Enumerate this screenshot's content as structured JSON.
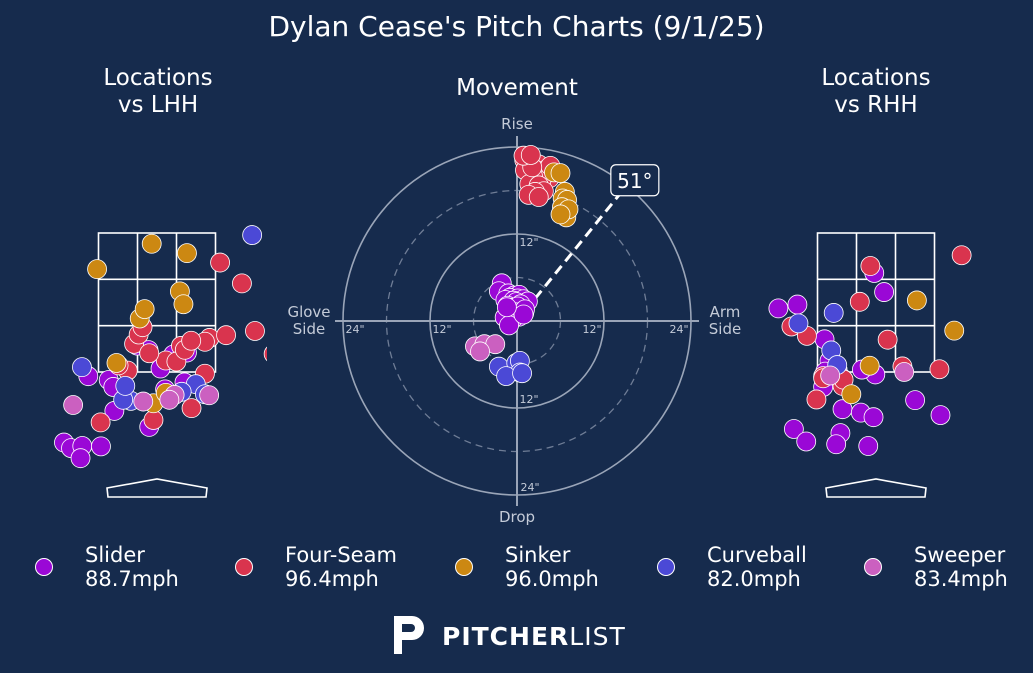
{
  "title": "Dylan Cease's Pitch Charts (9/1/25)",
  "panels": {
    "lhh_title": "Locations\nvs LHH",
    "movement_title": "Movement",
    "rhh_title": "Locations\nvs RHH"
  },
  "colors": {
    "background": "#162b4d",
    "Slider": "#9a08d6",
    "Four-Seam": "#d9344e",
    "Sinker": "#cc8812",
    "Curveball": "#4b49d6",
    "Sweeper": "#cb60c0"
  },
  "chart_data": [
    {
      "type": "scatter",
      "title": "Locations\nvs LHH",
      "series": [
        {
          "name": "Slider",
          "points": [
            [
              -0.56,
              2.26
            ],
            [
              -0.24,
              2.13
            ],
            [
              0.46,
              2.0
            ],
            [
              0.85,
              2.06
            ],
            [
              0.1,
              1.6
            ],
            [
              0.78,
              1.2
            ],
            [
              0.23,
              1.0
            ],
            [
              -1.95,
              1.38
            ],
            [
              -1.37,
              1.27
            ],
            [
              -1.24,
              1.07
            ],
            [
              -2.64,
              -0.53
            ],
            [
              -2.44,
              -0.69
            ],
            [
              -2.12,
              -0.63
            ],
            [
              -1.59,
              -0.64
            ],
            [
              -2.17,
              -0.98
            ],
            [
              -1.21,
              0.38
            ],
            [
              -0.22,
              -0.08
            ]
          ]
        },
        {
          "name": "Four-Seam",
          "points": [
            [
              -4.1,
              4.56
            ],
            [
              1.79,
              4.65
            ],
            [
              2.41,
              4.05
            ],
            [
              1.49,
              2.48
            ],
            [
              1.36,
              2.37
            ],
            [
              0.68,
              2.25
            ],
            [
              -0.65,
              2.31
            ],
            [
              -0.83,
              1.54
            ],
            [
              -1.09,
              1.69
            ],
            [
              0.25,
              1.83
            ],
            [
              0.55,
              1.8
            ],
            [
              0.79,
              2.14
            ],
            [
              0.97,
              2.4
            ],
            [
              1.36,
              1.45
            ],
            [
              1.96,
              2.56
            ],
            [
              2.78,
              2.68
            ],
            [
              3.31,
              2.02
            ],
            [
              3.44,
              1.87
            ],
            [
              -0.22,
              2.04
            ],
            [
              -0.52,
              2.58
            ],
            [
              -0.41,
              2.79
            ],
            [
              0.98,
              0.46
            ],
            [
              -0.1,
              0.12
            ],
            [
              -1.6,
              0.05
            ]
          ]
        },
        {
          "name": "Sinker",
          "points": [
            [
              -0.15,
              5.19
            ],
            [
              -1.7,
              4.46
            ],
            [
              0.85,
              4.92
            ],
            [
              0.65,
              3.82
            ],
            [
              0.75,
              3.45
            ],
            [
              -0.49,
              3.04
            ],
            [
              -0.35,
              3.31
            ],
            [
              -1.15,
              1.76
            ],
            [
              -0.1,
              0.6
            ],
            [
              0.25,
              0.9
            ]
          ]
        },
        {
          "name": "Curveball",
          "points": [
            [
              2.7,
              5.44
            ],
            [
              -2.13,
              1.64
            ],
            [
              1.1,
              1.15
            ],
            [
              0.7,
              0.93
            ],
            [
              1.36,
              0.86
            ],
            [
              -0.74,
              0.67
            ],
            [
              -0.96,
              0.7
            ],
            [
              -0.9,
              1.1
            ]
          ]
        },
        {
          "name": "Sweeper",
          "points": [
            [
              -2.38,
              0.55
            ],
            [
              -0.39,
              0.65
            ],
            [
              0.5,
              0.84
            ],
            [
              1.48,
              0.83
            ],
            [
              0.35,
              0.7
            ]
          ]
        }
      ]
    },
    {
      "type": "scatter",
      "title": "Movement",
      "xlabel_left": "Glove\nSide",
      "xlabel_right": "Arm\nSide",
      "ylabel_top": "Rise",
      "ylabel_bottom": "Drop",
      "rings": [
        "12\"",
        "24\""
      ],
      "tick_labels": {
        "right": [
          "12\"",
          "24\""
        ],
        "left": [
          "12\"",
          "24\""
        ],
        "top": [
          "12\""
        ],
        "bottom": [
          "12\"",
          "24\""
        ]
      },
      "arm_angle_label": "51°",
      "arm_angle": 51,
      "series": [
        {
          "name": "Slider",
          "points": [
            [
              -2.1,
              5.2
            ],
            [
              -2.5,
              4.1
            ],
            [
              -1.2,
              3.8
            ],
            [
              -0.4,
              3.5
            ],
            [
              0.3,
              3.6
            ],
            [
              -1.0,
              3.2
            ],
            [
              0.1,
              3.1
            ],
            [
              0.9,
              3.0
            ],
            [
              1.5,
              2.7
            ],
            [
              -1.6,
              2.9
            ],
            [
              -0.5,
              2.8
            ],
            [
              -0.1,
              2.6
            ],
            [
              0.5,
              2.3
            ],
            [
              -1.3,
              2.1
            ],
            [
              -0.7,
              1.8
            ],
            [
              0.1,
              2.0
            ],
            [
              -0.2,
              1.2
            ],
            [
              1.0,
              1.1
            ],
            [
              1.1,
              1.6
            ],
            [
              -1.0,
              0.8
            ],
            [
              0.3,
              0.6
            ],
            [
              -0.6,
              0.3
            ],
            [
              -1.1,
              0.6
            ],
            [
              -1.7,
              0.5
            ],
            [
              -1.1,
              -0.6
            ],
            [
              0.9,
              0.9
            ],
            [
              -1.4,
              1.9
            ]
          ]
        },
        {
          "name": "Four-Seam",
          "points": [
            [
              1.0,
              22.2
            ],
            [
              2.0,
              22.4
            ],
            [
              3.0,
              21.6
            ],
            [
              4.0,
              20.9
            ],
            [
              4.5,
              19.7
            ],
            [
              3.4,
              19.5
            ],
            [
              2.2,
              20.0
            ],
            [
              1.1,
              20.8
            ],
            [
              1.7,
              18.9
            ],
            [
              3.0,
              18.7
            ],
            [
              3.7,
              17.9
            ],
            [
              2.5,
              17.8
            ],
            [
              1.6,
              17.4
            ],
            [
              3.0,
              17.1
            ],
            [
              4.6,
              21.4
            ],
            [
              2.1,
              21.2
            ],
            [
              0.9,
              22.8
            ],
            [
              1.9,
              22.9
            ]
          ]
        },
        {
          "name": "Sinker",
          "points": [
            [
              5.1,
              20.5
            ],
            [
              6.0,
              20.4
            ],
            [
              6.6,
              17.8
            ],
            [
              6.3,
              16.9
            ],
            [
              6.9,
              16.7
            ],
            [
              6.2,
              15.7
            ],
            [
              6.6,
              14.8
            ],
            [
              6.8,
              14.3
            ],
            [
              7.1,
              15.4
            ],
            [
              6.0,
              14.7
            ]
          ]
        },
        {
          "name": "Curveball",
          "points": [
            [
              -2.5,
              -6.3
            ],
            [
              -0.1,
              -5.8
            ],
            [
              0.4,
              -5.5
            ],
            [
              0.4,
              -7.1
            ],
            [
              -1.5,
              -7.6
            ],
            [
              0.7,
              -7.2
            ]
          ]
        },
        {
          "name": "Sweeper",
          "points": [
            [
              -5.8,
              -3.5
            ],
            [
              -4.5,
              -3.2
            ],
            [
              -3.0,
              -3.2
            ],
            [
              -5.1,
              -4.2
            ]
          ]
        }
      ]
    },
    {
      "type": "scatter",
      "title": "Locations\nvs RHH",
      "series": [
        {
          "name": "Slider",
          "points": [
            [
              -0.05,
              4.35
            ],
            [
              0.23,
              3.8
            ],
            [
              -2.77,
              3.33
            ],
            [
              -2.23,
              3.44
            ],
            [
              -1.46,
              2.44
            ],
            [
              -1.32,
              1.82
            ],
            [
              -1.44,
              1.51
            ],
            [
              -1.4,
              1.34
            ],
            [
              -1.5,
              1.07
            ],
            [
              -0.95,
              0.43
            ],
            [
              -0.43,
              0.33
            ],
            [
              -0.02,
              1.43
            ],
            [
              -0.4,
              1.57
            ],
            [
              1.11,
              0.69
            ],
            [
              -0.07,
              0.2
            ],
            [
              -1.01,
              -0.26
            ],
            [
              -2.33,
              -0.14
            ],
            [
              -1.98,
              -0.5
            ],
            [
              -1.13,
              -0.58
            ],
            [
              -0.22,
              -0.63
            ],
            [
              1.83,
              0.26
            ],
            [
              -1.09,
              1.57
            ]
          ]
        },
        {
          "name": "Four-Seam",
          "points": [
            [
              -0.16,
              4.55
            ],
            [
              2.43,
              4.86
            ],
            [
              -2.4,
              2.81
            ],
            [
              -1.96,
              2.54
            ],
            [
              -0.46,
              3.52
            ],
            [
              0.33,
              2.43
            ],
            [
              1.8,
              1.58
            ],
            [
              -0.96,
              1.32
            ],
            [
              -0.95,
              1.1
            ],
            [
              -1.5,
              1.38
            ],
            [
              -1.5,
              1.32
            ],
            [
              0.75,
              1.66
            ],
            [
              -1.69,
              0.71
            ],
            [
              -0.92,
              1.28
            ]
          ]
        },
        {
          "name": "Sinker",
          "points": [
            [
              2.22,
              2.69
            ],
            [
              1.16,
              3.56
            ],
            [
              -0.7,
              0.86
            ],
            [
              -0.18,
              1.68
            ]
          ]
        },
        {
          "name": "Curveball",
          "points": [
            [
              -2.2,
              2.9
            ],
            [
              -1.2,
              3.2
            ],
            [
              -1.27,
              2.12
            ],
            [
              -1.1,
              1.7
            ]
          ]
        },
        {
          "name": "Sweeper",
          "points": [
            [
              0.8,
              1.5
            ],
            [
              -1.3,
              1.4
            ]
          ]
        }
      ]
    }
  ],
  "legend": [
    {
      "name": "Slider",
      "velo": "88.7mph"
    },
    {
      "name": "Four-Seam",
      "velo": "96.4mph"
    },
    {
      "name": "Sinker",
      "velo": "96.0mph"
    },
    {
      "name": "Curveball",
      "velo": "82.0mph"
    },
    {
      "name": "Sweeper",
      "velo": "83.4mph"
    }
  ],
  "brand": {
    "bold": "PITCHER",
    "light": "LIST"
  }
}
